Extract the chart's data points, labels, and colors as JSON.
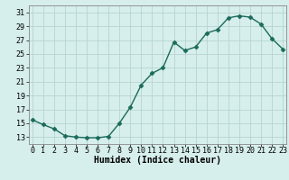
{
  "x": [
    0,
    1,
    2,
    3,
    4,
    5,
    6,
    7,
    8,
    9,
    10,
    11,
    12,
    13,
    14,
    15,
    16,
    17,
    18,
    19,
    20,
    21,
    22,
    23
  ],
  "y": [
    15.5,
    14.8,
    14.2,
    13.2,
    13.0,
    12.9,
    12.9,
    13.1,
    15.0,
    17.3,
    20.5,
    22.2,
    23.0,
    26.7,
    25.5,
    26.0,
    28.0,
    28.5,
    30.2,
    30.5,
    30.3,
    29.3,
    27.2,
    25.7
  ],
  "line_color": "#1a6b5a",
  "marker": "D",
  "markersize": 2.5,
  "linewidth": 1.0,
  "bg_color": "#d6eeec",
  "grid_color": "#b8d4d0",
  "xlabel": "Humidex (Indice chaleur)",
  "xlabel_fontsize": 7,
  "tick_fontsize": 6,
  "ylim": [
    12,
    32
  ],
  "yticks": [
    13,
    15,
    17,
    19,
    21,
    23,
    25,
    27,
    29,
    31
  ],
  "xticks": [
    0,
    1,
    2,
    3,
    4,
    5,
    6,
    7,
    8,
    9,
    10,
    11,
    12,
    13,
    14,
    15,
    16,
    17,
    18,
    19,
    20,
    21,
    22,
    23
  ],
  "xlim": [
    -0.3,
    23.3
  ]
}
